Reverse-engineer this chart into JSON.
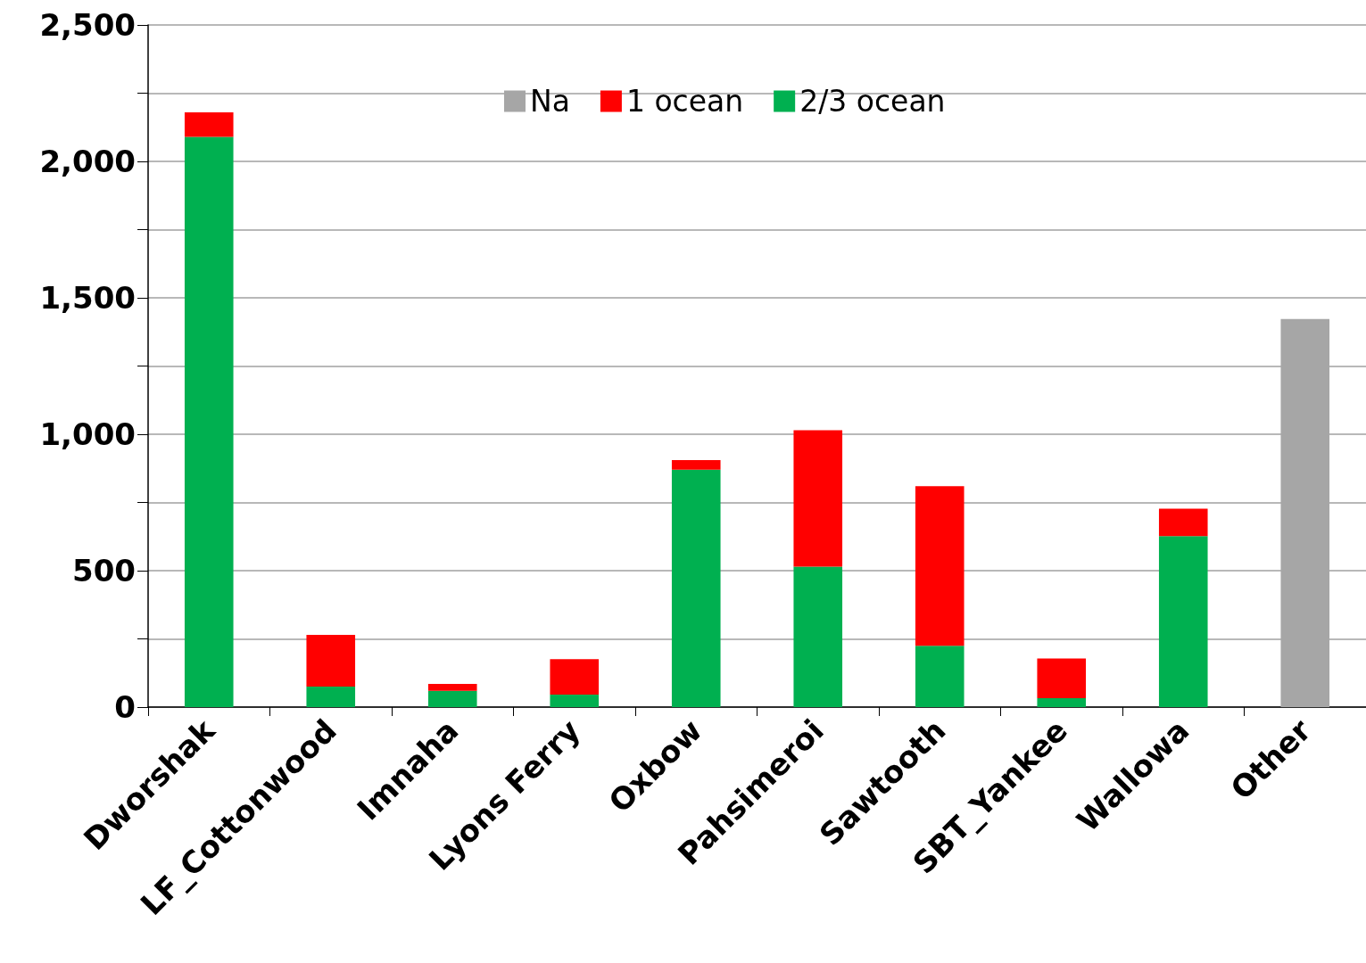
{
  "chart_data": {
    "type": "bar",
    "stacked": true,
    "categories": [
      "Dworshak",
      "LF_Cottonwood",
      "Imnaha",
      "Lyons Ferry",
      "Oxbow",
      "Pahsimeroi",
      "Sawtooth",
      "SBT_Yankee",
      "Wallowa",
      "Other"
    ],
    "series": [
      {
        "name": "2/3 ocean",
        "color": "#00b050",
        "values": [
          2090,
          75,
          60,
          46,
          870,
          515,
          225,
          33,
          627,
          null
        ]
      },
      {
        "name": "1 ocean",
        "color": "#ff0000",
        "values": [
          90,
          190,
          25,
          130,
          35,
          500,
          585,
          145,
          100,
          null
        ]
      },
      {
        "name": "Na",
        "color": "#a6a6a6",
        "values": [
          null,
          null,
          null,
          null,
          null,
          null,
          null,
          null,
          null,
          1422
        ]
      }
    ],
    "ylim": [
      0,
      2500
    ],
    "yticks": [
      {
        "value": 0,
        "label": "0"
      },
      {
        "value": 250,
        "label": null
      },
      {
        "value": 500,
        "label": "500"
      },
      {
        "value": 750,
        "label": null
      },
      {
        "value": 1000,
        "label": "1,000"
      },
      {
        "value": 1250,
        "label": null
      },
      {
        "value": 1500,
        "label": "1,500"
      },
      {
        "value": 1750,
        "label": null
      },
      {
        "value": 2000,
        "label": "2,000"
      },
      {
        "value": 2250,
        "label": null
      },
      {
        "value": 2500,
        "label": "2,500"
      }
    ],
    "grid": "y",
    "legend": "top"
  }
}
